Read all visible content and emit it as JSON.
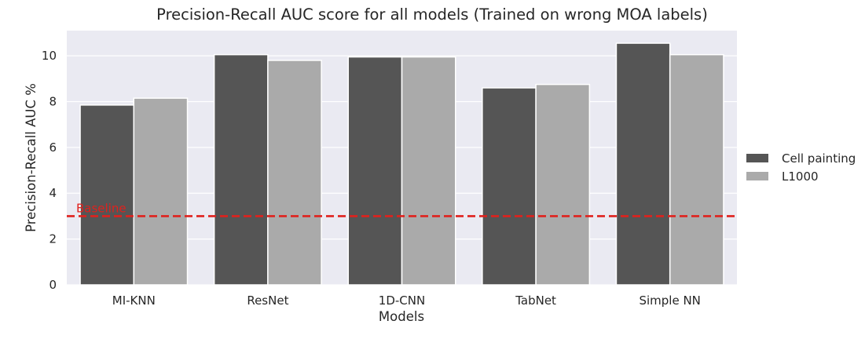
{
  "chart_data": {
    "type": "bar",
    "title": "Precision-Recall AUC score for all models (Trained on wrong MOA labels)",
    "xlabel": "Models",
    "ylabel": "Precision-Recall AUC %",
    "categories": [
      "MI-KNN",
      "ResNet",
      "1D-CNN",
      "TabNet",
      "Simple NN"
    ],
    "series": [
      {
        "name": "Cell painting",
        "color": "#555555",
        "values": [
          7.85,
          10.05,
          9.95,
          8.6,
          10.55
        ]
      },
      {
        "name": "L1000",
        "color": "#aaaaaa",
        "values": [
          8.15,
          9.8,
          9.95,
          8.75,
          10.05
        ]
      }
    ],
    "ylim": [
      0,
      11.1
    ],
    "yticks": [
      0,
      2,
      4,
      6,
      8,
      10
    ],
    "baseline": {
      "label": "Baseline",
      "value": 3.0,
      "color": "#e0211d",
      "style": "dashed"
    },
    "grid": true,
    "legend_position": "right",
    "background": "#eaeaf2"
  }
}
